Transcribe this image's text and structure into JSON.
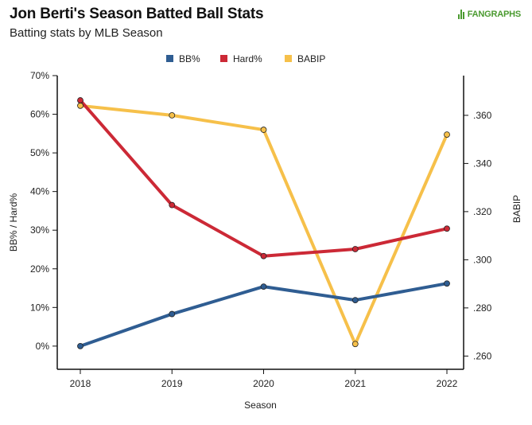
{
  "header": {
    "title": "Jon Berti's Season Batted Ball Stats",
    "subtitle": "Batting stats by MLB Season",
    "brand": "FANGRAPHS"
  },
  "colors": {
    "bb": "#2f5d92",
    "hard": "#cc2936",
    "babip": "#f6c04a",
    "axis": "#111111"
  },
  "chart_data": {
    "type": "line",
    "title": "Jon Berti's Season Batted Ball Stats",
    "subtitle": "Batting stats by MLB Season",
    "xlabel": "Season",
    "ylabel_left": "BB% / Hard%",
    "ylabel_right": "BABIP",
    "categories": [
      "2018",
      "2019",
      "2020",
      "2021",
      "2022"
    ],
    "y_left": {
      "lim": [
        -6,
        70
      ],
      "ticks": [
        0,
        10,
        20,
        30,
        40,
        50,
        60,
        70
      ],
      "tick_labels": [
        "0%",
        "10%",
        "20%",
        "30%",
        "40%",
        "50%",
        "60%",
        "70%"
      ]
    },
    "y_right": {
      "lim": [
        0.2545,
        0.3765
      ],
      "ticks": [
        0.26,
        0.28,
        0.3,
        0.32,
        0.34,
        0.36
      ],
      "tick_labels": [
        ".260",
        ".280",
        ".300",
        ".320",
        ".340",
        ".360"
      ]
    },
    "series": [
      {
        "name": "BB%",
        "axis": "left",
        "color": "#2f5d92",
        "values": [
          0.0,
          8.3,
          15.4,
          11.9,
          16.2
        ]
      },
      {
        "name": "Hard%",
        "axis": "left",
        "color": "#cc2936",
        "values": [
          63.6,
          36.5,
          23.3,
          25.1,
          30.4
        ]
      },
      {
        "name": "BABIP",
        "axis": "right",
        "color": "#f6c04a",
        "values": [
          0.364,
          0.36,
          0.354,
          0.265,
          0.352
        ]
      }
    ],
    "legend_position": "top-center"
  }
}
